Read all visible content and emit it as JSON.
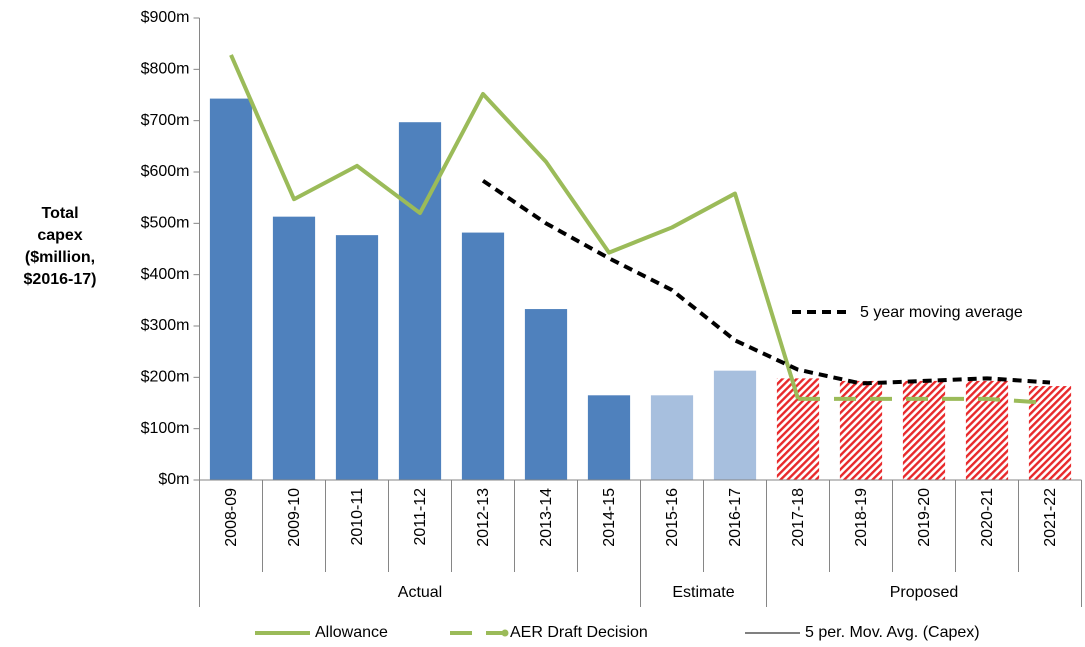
{
  "chart_data": {
    "type": "bar-line",
    "y_label_lines": [
      "Total",
      "capex",
      "($million,",
      "$2016-17)"
    ],
    "categories": [
      "2008-09",
      "2009-10",
      "2010-11",
      "2011-12",
      "2012-13",
      "2013-14",
      "2014-15",
      "2015-16",
      "2016-17",
      "2017-18",
      "2018-19",
      "2019-20",
      "2020-21",
      "2021-22"
    ],
    "bars": {
      "values": [
        743,
        513,
        477,
        697,
        482,
        333,
        165,
        165,
        213,
        198,
        193,
        193,
        193,
        183
      ]
    },
    "groups": [
      {
        "label": "Actual",
        "size": 7,
        "color": "#4f81bd",
        "pattern": "solid"
      },
      {
        "label": "Estimate",
        "size": 2,
        "color": "#a7bfde",
        "pattern": "solid"
      },
      {
        "label": "Proposed",
        "size": 5,
        "color": "#e8292b",
        "pattern": "hatch"
      }
    ],
    "series": [
      {
        "name": "Allowance",
        "color": "#9bbb59",
        "style": "solid",
        "values": [
          828,
          547,
          612,
          520,
          752,
          620,
          443,
          492,
          558,
          158,
          null,
          null,
          null,
          null
        ]
      },
      {
        "name": "AER Draft Decision",
        "color": "#9bbb59",
        "style": "dashed",
        "values": [
          null,
          null,
          null,
          null,
          null,
          null,
          null,
          null,
          null,
          158,
          158,
          158,
          158,
          150
        ]
      },
      {
        "name": "5 per. Mov. Avg. (Capex)",
        "color": "#000000",
        "style": "dashed",
        "values": [
          null,
          null,
          null,
          null,
          583,
          500,
          432,
          370,
          272,
          215,
          188,
          193,
          198,
          190
        ]
      }
    ],
    "annotation": "5 year moving average",
    "ylim": [
      0,
      900
    ],
    "yticks": [
      {
        "value": 0,
        "label": "$0m"
      },
      {
        "value": 100,
        "label": "$100m"
      },
      {
        "value": 200,
        "label": "$200m"
      },
      {
        "value": 300,
        "label": "$300m"
      },
      {
        "value": 400,
        "label": "$400m"
      },
      {
        "value": 500,
        "label": "$500m"
      },
      {
        "value": 600,
        "label": "$600m"
      },
      {
        "value": 700,
        "label": "$700m"
      },
      {
        "value": 800,
        "label": "$800m"
      },
      {
        "value": 900,
        "label": "$900m"
      }
    ],
    "legend": "bottom"
  }
}
